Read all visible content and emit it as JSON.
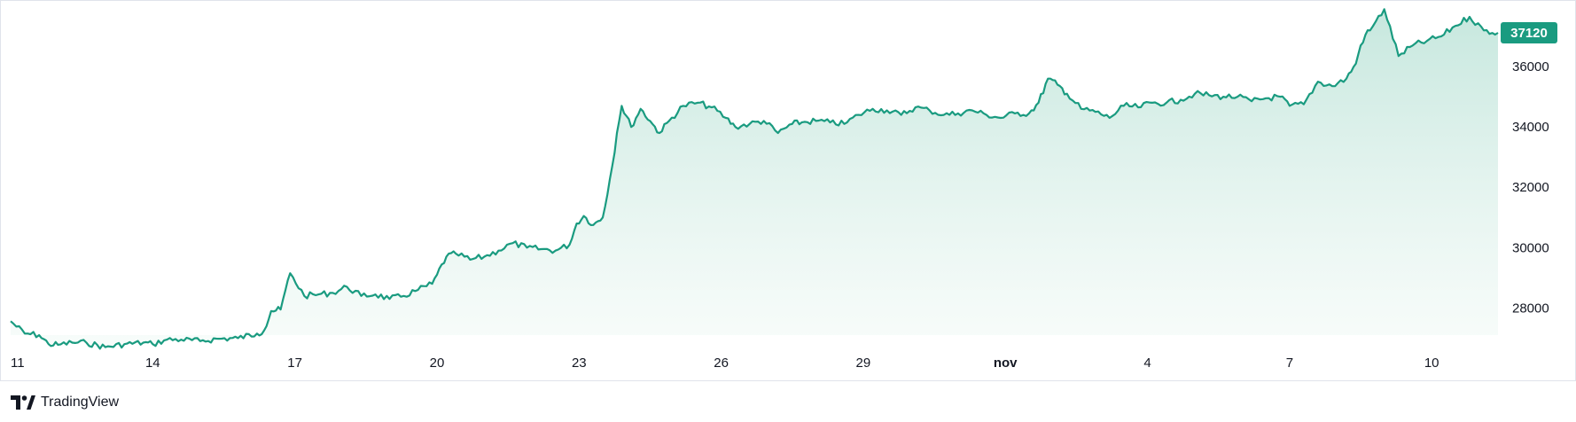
{
  "branding": {
    "name": "TradingView"
  },
  "chart_data": {
    "type": "area",
    "title": "",
    "xlabel": "",
    "ylabel": "",
    "x_tick_labels": [
      "11",
      "14",
      "17",
      "20",
      "23",
      "26",
      "29",
      "nov",
      "4",
      "7",
      "10"
    ],
    "x_tick_days": [
      11,
      14,
      17,
      20,
      23,
      26,
      29,
      32,
      35,
      38,
      41
    ],
    "x_month_ticks": [
      "nov"
    ],
    "x_range_days": [
      11,
      42.4
    ],
    "y_ticks": [
      28000,
      30000,
      32000,
      34000,
      36000
    ],
    "ylim": [
      27100,
      38060
    ],
    "last_value": 37120,
    "last_value_label": "37120",
    "grid": false,
    "legend": "none",
    "colors": {
      "line": "#1a9b80",
      "fill_top": "#c3e6dc",
      "fill_bottom": "#f3faf7",
      "label_bg": "#1a9b80"
    },
    "series": [
      {
        "x_days": [
          11.0,
          11.3,
          11.6,
          11.8,
          12.0,
          12.3,
          12.6,
          13.0,
          13.4,
          13.8,
          14.0,
          14.3,
          14.6,
          15.0,
          15.4,
          15.8,
          16.2,
          16.35,
          16.5,
          16.7,
          16.9,
          17.2,
          17.5,
          17.8,
          18.1,
          18.4,
          18.7,
          19.0,
          19.3,
          19.6,
          19.9,
          20.0,
          20.2,
          20.4,
          20.7,
          21.0,
          21.3,
          21.6,
          21.9,
          22.2,
          22.5,
          22.8,
          22.95,
          23.1,
          23.3,
          23.5,
          23.7,
          23.8,
          23.9,
          24.1,
          24.3,
          24.5,
          24.7,
          24.9,
          25.2,
          25.5,
          25.8,
          26.1,
          26.3,
          26.6,
          26.9,
          27.2,
          27.5,
          27.7,
          28.0,
          28.3,
          28.6,
          28.9,
          29.2,
          29.5,
          29.8,
          30.1,
          30.4,
          30.7,
          31.0,
          31.3,
          31.6,
          31.9,
          32.2,
          32.5,
          32.7,
          32.9,
          33.1,
          33.3,
          33.6,
          33.9,
          34.2,
          34.5,
          34.8,
          35.1,
          35.4,
          35.7,
          36.0,
          36.3,
          36.6,
          36.9,
          37.2,
          37.5,
          37.8,
          38.0,
          38.3,
          38.6,
          38.9,
          39.2,
          39.4,
          39.5,
          39.6,
          39.7,
          40.0,
          40.3,
          40.6,
          40.9,
          41.2,
          41.5,
          41.8,
          42.1,
          42.4
        ],
        "values": [
          27560,
          27150,
          27100,
          26800,
          26780,
          26850,
          26850,
          26700,
          26800,
          26850,
          26800,
          26950,
          26950,
          26900,
          26980,
          27000,
          27150,
          27250,
          27900,
          27950,
          29150,
          28400,
          28450,
          28500,
          28700,
          28400,
          28450,
          28300,
          28400,
          28600,
          28800,
          29100,
          29700,
          29800,
          29600,
          29700,
          29900,
          30150,
          30000,
          29950,
          29900,
          30100,
          30800,
          31050,
          30750,
          31000,
          32700,
          33800,
          34700,
          34000,
          34600,
          34200,
          33800,
          34200,
          34700,
          34800,
          34650,
          34300,
          34000,
          34100,
          34200,
          33800,
          34100,
          34150,
          34200,
          34150,
          34100,
          34400,
          34600,
          34550,
          34400,
          34650,
          34550,
          34400,
          34450,
          34550,
          34400,
          34300,
          34450,
          34450,
          34800,
          35600,
          35400,
          35100,
          34600,
          34500,
          34300,
          34700,
          34650,
          34800,
          34800,
          34900,
          35100,
          35050,
          35000,
          35000,
          34850,
          34950,
          35000,
          34700,
          34750,
          35500,
          35350,
          35600,
          36100,
          36700,
          37050,
          37200,
          37900,
          36350,
          36700,
          36850,
          37000,
          37350,
          37650,
          37200,
          37120
        ]
      }
    ]
  }
}
